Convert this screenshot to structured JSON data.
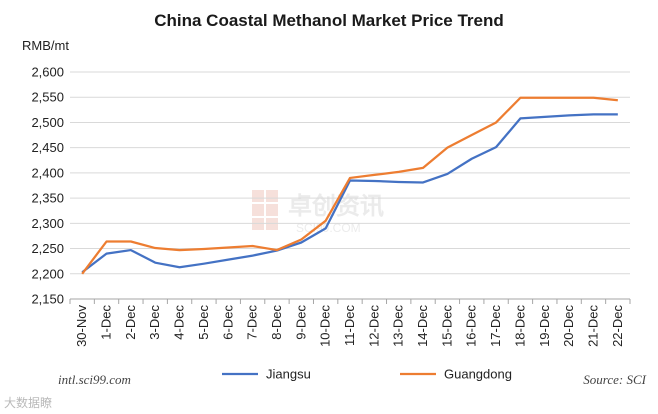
{
  "chart_data": {
    "type": "line",
    "title": "China Coastal Methanol Market Price Trend",
    "ylabel": "RMB/mt",
    "xlabel": "",
    "ylim": [
      2150,
      2600
    ],
    "yticks": [
      2150,
      2200,
      2250,
      2300,
      2350,
      2400,
      2450,
      2500,
      2550,
      2600
    ],
    "grid": "horizontal",
    "legend_position": "bottom",
    "categories": [
      "30-Nov",
      "1-Dec",
      "2-Dec",
      "3-Dec",
      "4-Dec",
      "5-Dec",
      "6-Dec",
      "7-Dec",
      "8-Dec",
      "9-Dec",
      "10-Dec",
      "11-Dec",
      "12-Dec",
      "13-Dec",
      "14-Dec",
      "15-Dec",
      "16-Dec",
      "17-Dec",
      "18-Dec",
      "19-Dec",
      "20-Dec",
      "21-Dec",
      "22-Dec"
    ],
    "series": [
      {
        "name": "Jiangsu",
        "color": "#4472c4",
        "values": [
          2203,
          2240,
          2247,
          2222,
          2213,
          2220,
          2228,
          2236,
          2246,
          2262,
          2290,
          2385,
          2384,
          2382,
          2381,
          2398,
          2428,
          2451,
          2508,
          2511,
          2514,
          2516,
          2516
        ]
      },
      {
        "name": "Guangdong",
        "color": "#ed7d31",
        "values": [
          2200,
          2264,
          2264,
          2251,
          2247,
          2249,
          2252,
          2255,
          2247,
          2268,
          2305,
          2390,
          2396,
          2402,
          2410,
          2450,
          2475,
          2500,
          2549,
          2549,
          2549,
          2549,
          2544
        ]
      }
    ]
  },
  "footer": {
    "website": "intl.sci99.com",
    "source": "Source: SCI"
  },
  "watermark": {
    "center_text": "卓创资讯",
    "center_sub": "SCI99.COM",
    "bottom_text": "大数据瞭"
  }
}
